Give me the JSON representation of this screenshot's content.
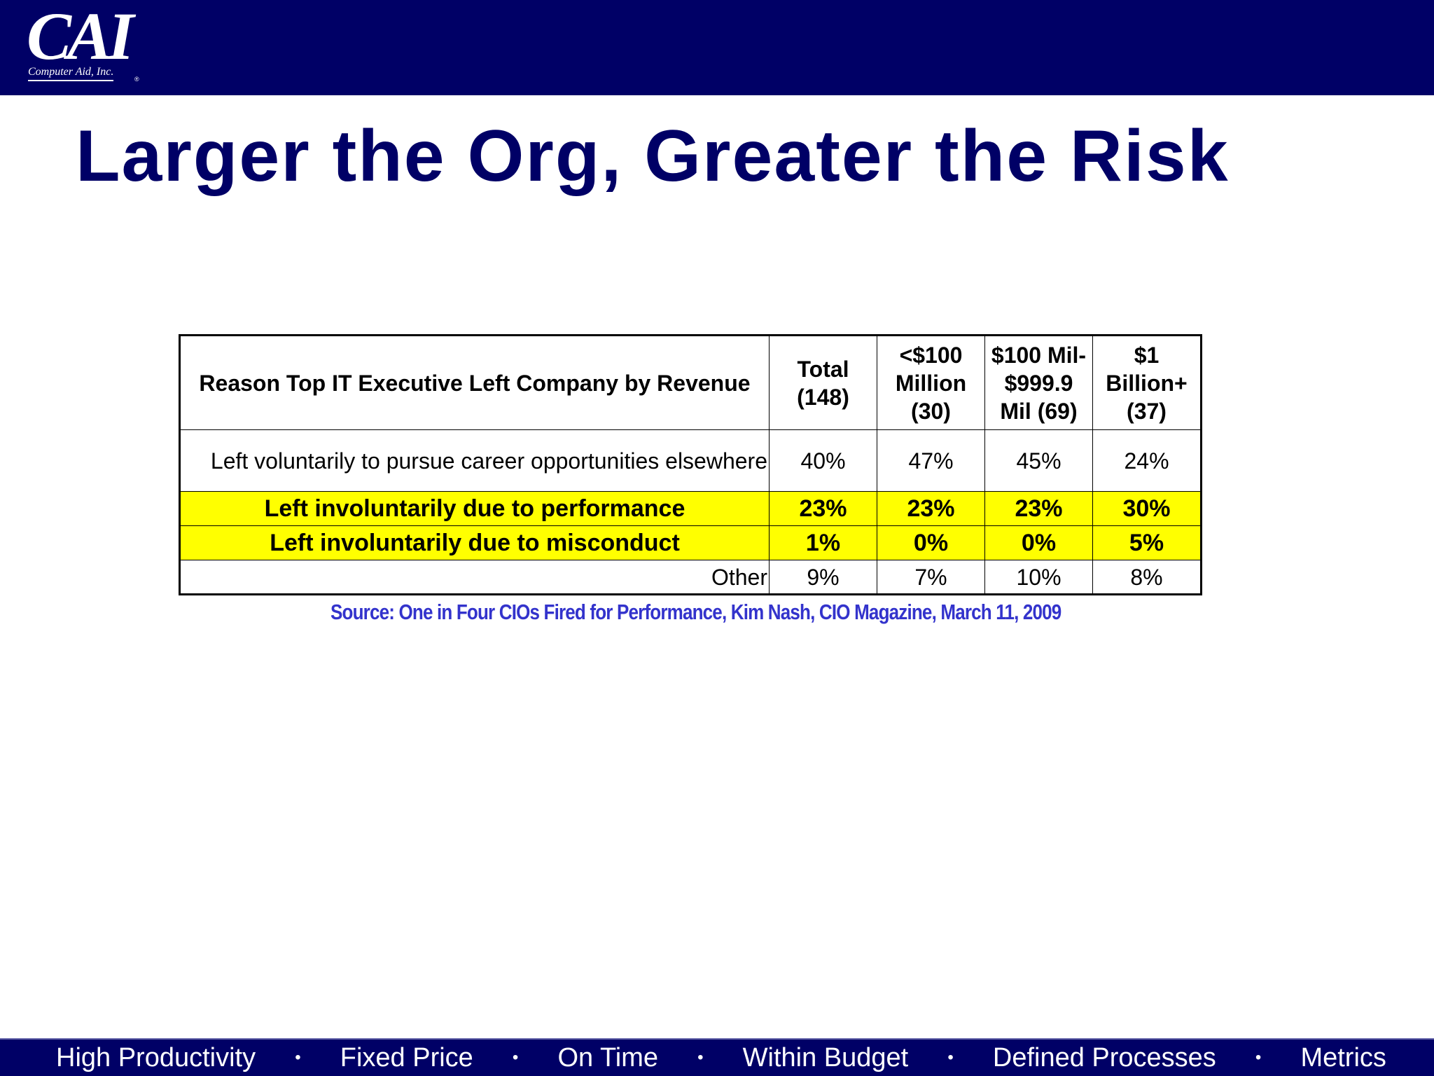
{
  "header": {
    "logo_mark": "CAI",
    "logo_sub": "Computer Aid, Inc.",
    "logo_reg": "®"
  },
  "slide": {
    "title": "Larger the Org, Greater the Risk"
  },
  "table": {
    "header": {
      "reason": "Reason Top IT Executive Left Company by Revenue",
      "columns": [
        [
          "Total",
          "(148)"
        ],
        [
          "<$100",
          "Million",
          "(30)"
        ],
        [
          "$100 Mil-",
          "$999.9",
          "Mil (69)"
        ],
        [
          "$1",
          "Billion+",
          "(37)"
        ]
      ]
    },
    "rows": [
      {
        "label": "Left voluntarily to pursue career opportunities elsewhere",
        "values": [
          "40%",
          "47%",
          "45%",
          "24%"
        ]
      },
      {
        "label": "Left involuntarily due to performance",
        "values": [
          "23%",
          "23%",
          "23%",
          "30%"
        ]
      },
      {
        "label": "Left involuntarily due to misconduct",
        "values": [
          "1%",
          "0%",
          "0%",
          "5%"
        ]
      },
      {
        "label": "Other",
        "values": [
          "9%",
          "7%",
          "10%",
          "8%"
        ]
      }
    ],
    "highlight_color": "#ffff00"
  },
  "source": "Source: One in Four CIOs Fired for Performance, Kim Nash, CIO Magazine, March 11, 2009",
  "footer": {
    "items": [
      "High Productivity",
      "Fixed Price",
      "On Time",
      "Within Budget",
      "Defined Processes",
      "Metrics"
    ],
    "separator": "•"
  },
  "colors": {
    "brand_navy": "#000066",
    "source_blue": "#3333cc"
  }
}
